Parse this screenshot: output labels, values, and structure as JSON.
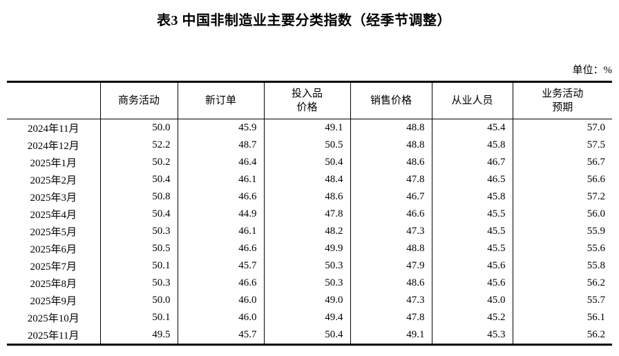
{
  "page": {
    "title": "表3 中国非制造业主要分类指数（经季节调整）",
    "unit_label": "单位：%"
  },
  "table": {
    "columns": [
      "",
      "商务活动",
      "新订单",
      "投入品\n价格",
      "销售价格",
      "从业人员",
      "业务活动\n预期"
    ],
    "rows": [
      {
        "period": "2024年11月",
        "values": [
          "50.0",
          "45.9",
          "49.1",
          "48.8",
          "45.4",
          "57.0"
        ]
      },
      {
        "period": "2024年12月",
        "values": [
          "52.2",
          "48.7",
          "50.5",
          "48.8",
          "45.8",
          "57.5"
        ]
      },
      {
        "period": "2025年1月",
        "values": [
          "50.2",
          "46.4",
          "50.4",
          "48.6",
          "46.7",
          "56.7"
        ]
      },
      {
        "period": "2025年2月",
        "values": [
          "50.4",
          "46.1",
          "48.4",
          "47.8",
          "46.5",
          "56.6"
        ]
      },
      {
        "period": "2025年3月",
        "values": [
          "50.8",
          "46.6",
          "48.6",
          "46.7",
          "45.8",
          "57.2"
        ]
      },
      {
        "period": "2025年4月",
        "values": [
          "50.4",
          "44.9",
          "47.8",
          "46.6",
          "45.5",
          "56.0"
        ]
      },
      {
        "period": "2025年5月",
        "values": [
          "50.3",
          "46.1",
          "48.2",
          "47.3",
          "45.5",
          "55.9"
        ]
      },
      {
        "period": "2025年6月",
        "values": [
          "50.5",
          "46.6",
          "49.9",
          "48.8",
          "45.5",
          "55.6"
        ]
      },
      {
        "period": "2025年7月",
        "values": [
          "50.1",
          "45.7",
          "50.3",
          "47.9",
          "45.6",
          "55.8"
        ]
      },
      {
        "period": "2025年8月",
        "values": [
          "50.3",
          "46.6",
          "50.3",
          "48.6",
          "45.6",
          "56.2"
        ]
      },
      {
        "period": "2025年9月",
        "values": [
          "50.0",
          "46.0",
          "49.0",
          "47.3",
          "45.0",
          "55.7"
        ]
      },
      {
        "period": "2025年10月",
        "values": [
          "50.1",
          "46.0",
          "49.4",
          "47.8",
          "45.2",
          "56.1"
        ]
      },
      {
        "period": "2025年11月",
        "values": [
          "49.5",
          "45.7",
          "50.4",
          "49.1",
          "45.3",
          "56.2"
        ]
      }
    ]
  }
}
